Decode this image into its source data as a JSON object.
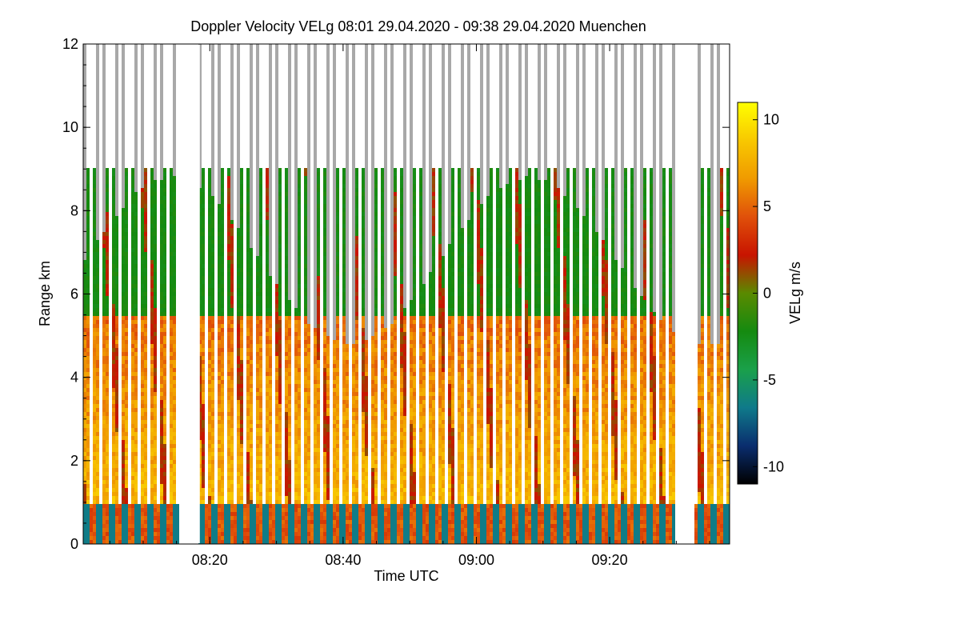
{
  "chart_data": {
    "type": "heatmap",
    "title": "Doppler Velocity VELg   08:01 29.04.2020 - 09:38 29.04.2020 Muenchen",
    "xlabel": "Time UTC",
    "ylabel": "Range km",
    "xlim_minutes": [
      481,
      578
    ],
    "ylim": [
      0,
      12
    ],
    "x_ticks": [
      {
        "minutes": 500,
        "label": "08:20"
      },
      {
        "minutes": 520,
        "label": "08:40"
      },
      {
        "minutes": 540,
        "label": "09:00"
      },
      {
        "minutes": 560,
        "label": "09:20"
      }
    ],
    "y_ticks": [
      0,
      2,
      4,
      6,
      8,
      10,
      12
    ],
    "colorbar": {
      "label": "VELg m/s",
      "range": [
        -11,
        11
      ],
      "ticks": [
        10,
        5,
        0,
        -5,
        -10
      ],
      "colors": [
        "#000000",
        "#0a2d6e",
        "#0f7a8a",
        "#1aa04a",
        "#158a10",
        "#5a8a00",
        "#c81400",
        "#e0500a",
        "#f09a00",
        "#f8c800",
        "#ffff00"
      ]
    },
    "no_data_gaps_minutes": [
      [
        495.5,
        498.5
      ],
      [
        570.0,
        572.5
      ]
    ]
  }
}
